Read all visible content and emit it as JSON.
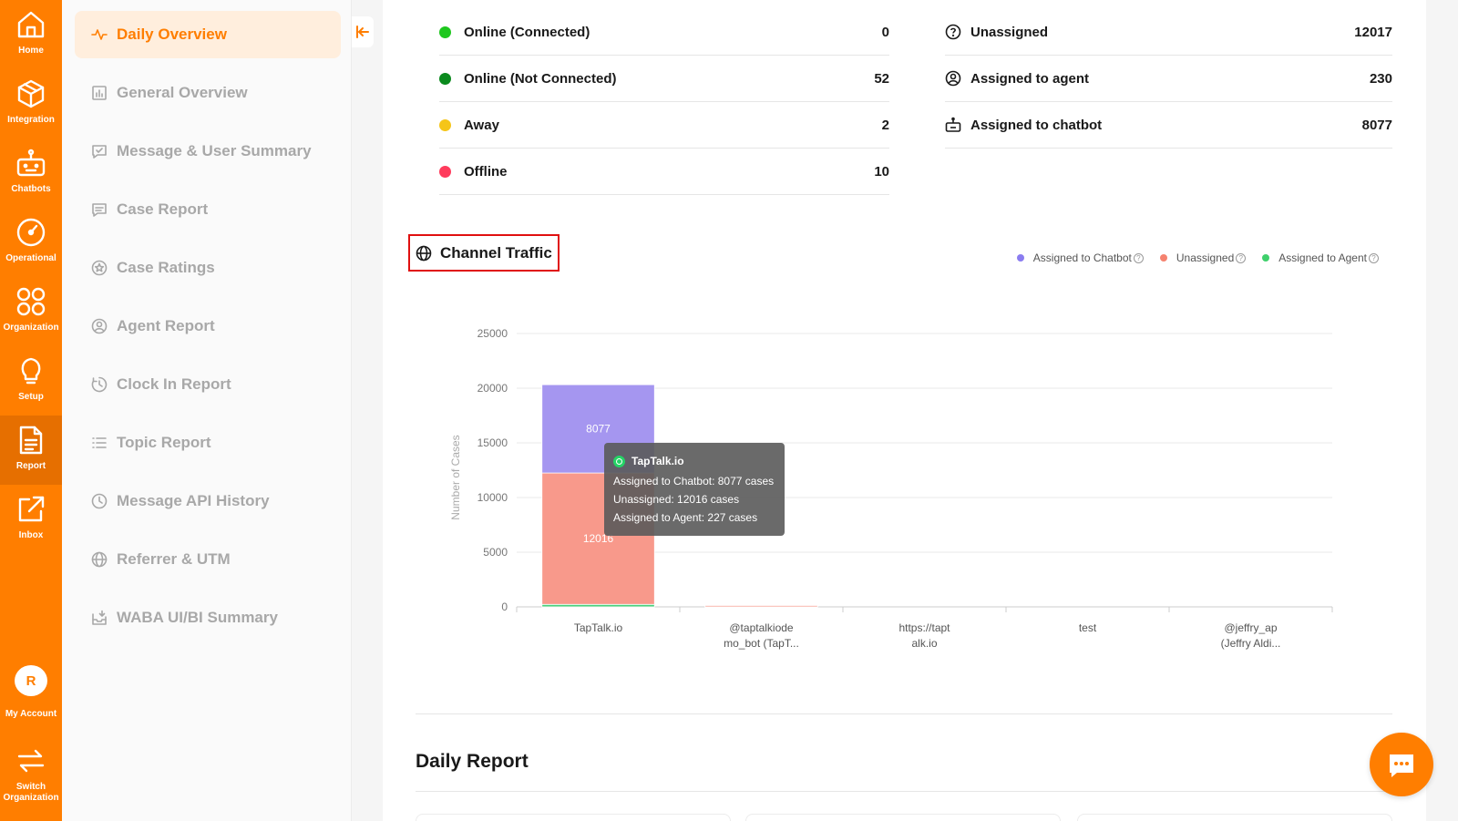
{
  "rail": {
    "items": [
      {
        "label": "Home",
        "icon": "home-icon"
      },
      {
        "label": "Integration",
        "icon": "cube-icon"
      },
      {
        "label": "Chatbots",
        "icon": "robot-icon"
      },
      {
        "label": "Operational",
        "icon": "gauge-icon"
      },
      {
        "label": "Organization",
        "icon": "grid-circles-icon"
      },
      {
        "label": "Setup",
        "icon": "lightbulb-icon"
      },
      {
        "label": "Report",
        "icon": "document-icon"
      },
      {
        "label": "Inbox",
        "icon": "external-link-icon"
      }
    ],
    "account": {
      "initial": "R",
      "label": "My Account"
    },
    "switch": {
      "label_line1": "Switch",
      "label_line2": "Organization"
    }
  },
  "subnav": {
    "items": [
      {
        "label": "Daily Overview",
        "icon": "pulse-icon"
      },
      {
        "label": "General Overview",
        "icon": "bar-chart-icon"
      },
      {
        "label": "Message & User Summary",
        "icon": "message-check-icon"
      },
      {
        "label": "Case Report",
        "icon": "message-lines-icon"
      },
      {
        "label": "Case Ratings",
        "icon": "star-circle-icon"
      },
      {
        "label": "Agent Report",
        "icon": "user-circle-icon"
      },
      {
        "label": "Clock In Report",
        "icon": "clock-in-icon"
      },
      {
        "label": "Topic Report",
        "icon": "list-icon"
      },
      {
        "label": "Message API History",
        "icon": "clock-icon"
      },
      {
        "label": "Referrer & UTM",
        "icon": "globe-icon"
      },
      {
        "label": "WABA UI/BI Summary",
        "icon": "inbox-download-icon"
      }
    ]
  },
  "agent_status": [
    {
      "label": "Online (Connected)",
      "value": "0",
      "color": "#1fc71f"
    },
    {
      "label": "Online (Not Connected)",
      "value": "52",
      "color": "#0b8a1e"
    },
    {
      "label": "Away",
      "value": "2",
      "color": "#f5c518"
    },
    {
      "label": "Offline",
      "value": "10",
      "color": "#ff3b5c"
    }
  ],
  "case_status": [
    {
      "label": "Unassigned",
      "value": "12017",
      "icon": "question-circle-icon"
    },
    {
      "label": "Assigned to agent",
      "value": "230",
      "icon": "user-circle-icon"
    },
    {
      "label": "Assigned to chatbot",
      "value": "8077",
      "icon": "robot-icon"
    }
  ],
  "channel_traffic": {
    "title": "Channel Traffic"
  },
  "chart_data": {
    "type": "bar",
    "stacked": true,
    "ylabel": "Number of Cases",
    "ylim": [
      0,
      25000
    ],
    "yticks": [
      "0",
      "5000",
      "10000",
      "15000",
      "20000",
      "25000"
    ],
    "categories": [
      [
        "TapTalk.io"
      ],
      [
        "@taptalkiode",
        "mo_bot (TapT..."
      ],
      [
        "https://tapt",
        "alk.io"
      ],
      [
        "test"
      ],
      [
        "@jeffry_ap",
        "(Jeffry Aldi..."
      ]
    ],
    "series": [
      {
        "name": "Assigned to Agent",
        "color": "#4cd07d",
        "values": [
          227,
          3,
          0,
          0,
          0
        ]
      },
      {
        "name": "Unassigned",
        "color": "#f8998b",
        "values": [
          12016,
          1,
          0,
          0,
          0
        ]
      },
      {
        "name": "Assigned to Chatbot",
        "color": "#a596f0",
        "values": [
          8077,
          0,
          0,
          0,
          0
        ]
      }
    ],
    "data_labels": {
      "chatbot": "8077",
      "unassigned": "12016"
    },
    "legend": "top-right",
    "grid": true
  },
  "legend": [
    {
      "label": "Assigned to Chatbot",
      "color": "#8a7cf0"
    },
    {
      "label": "Unassigned",
      "color": "#f5826f"
    },
    {
      "label": "Assigned to Agent",
      "color": "#3fd06c"
    }
  ],
  "tooltip": {
    "title": "TapTalk.io",
    "line1": "Assigned to Chatbot: 8077 cases",
    "line2": "Unassigned: 12016 cases",
    "line3": "Assigned to Agent: 227 cases"
  },
  "daily_report": {
    "title": "Daily Report"
  }
}
